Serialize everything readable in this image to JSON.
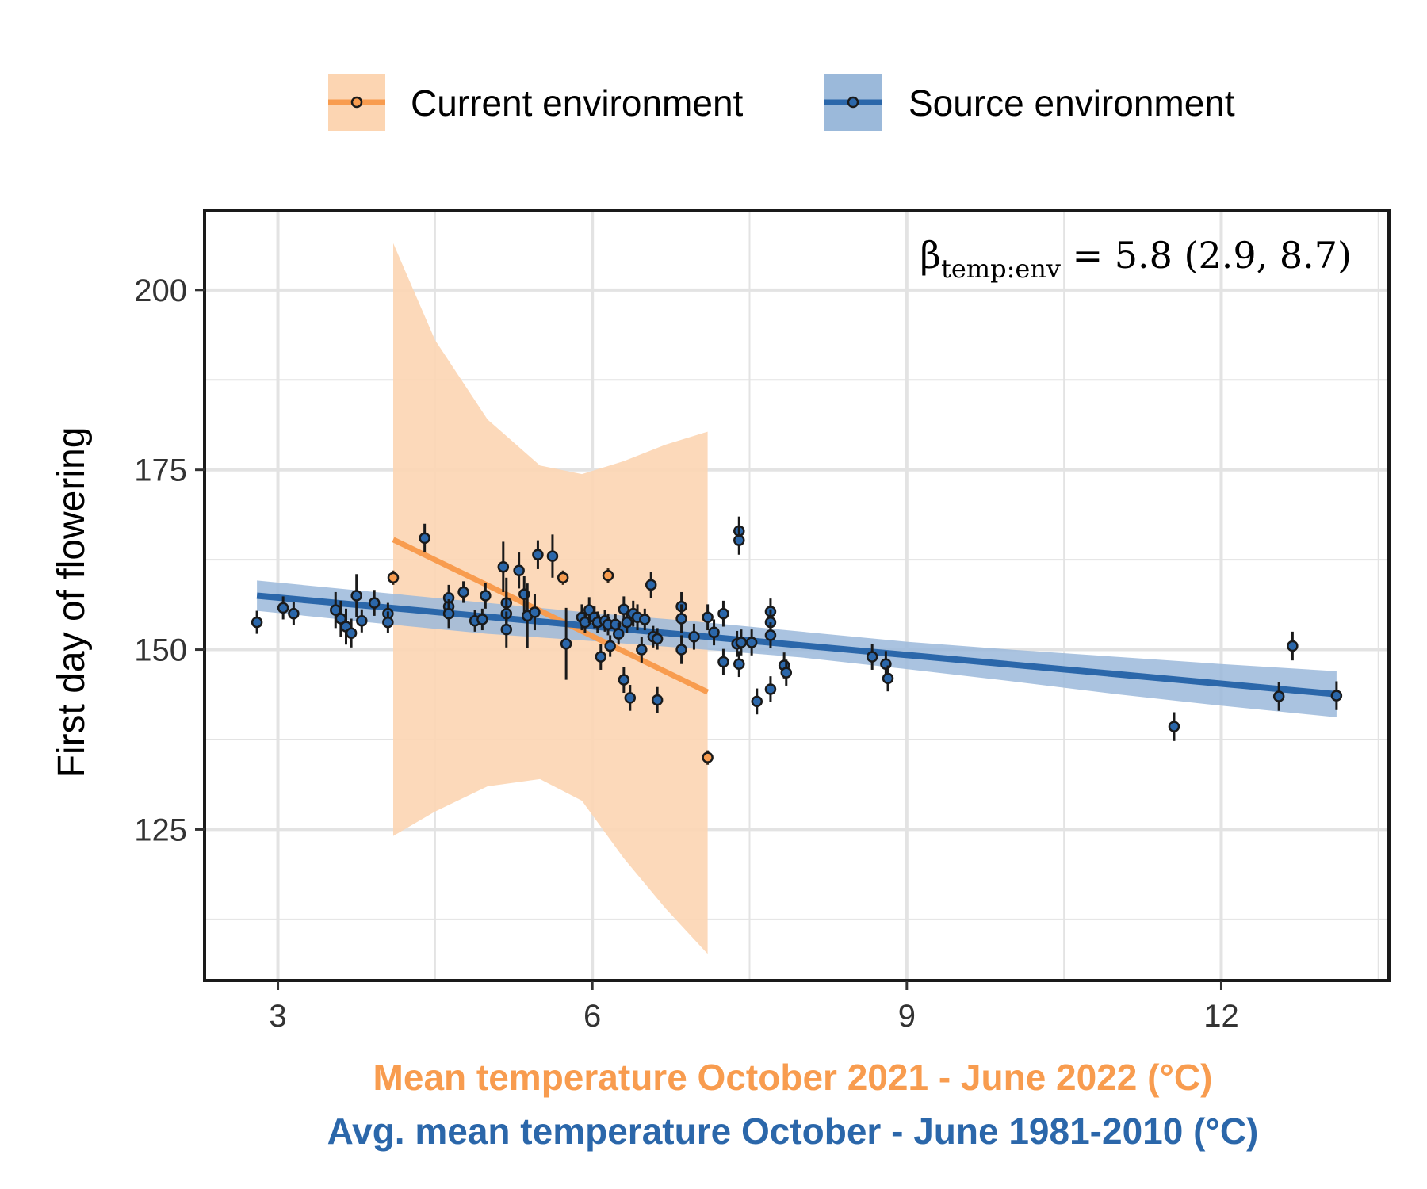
{
  "chart_data": {
    "type": "scatter",
    "title": "",
    "xlabel_current": "Mean temperature October 2021 - June 2022 (°C)",
    "xlabel_source": "Avg. mean temperature October - June 1981-2010 (°C)",
    "ylabel": "First day of flowering",
    "xlim": [
      2.3,
      13.6
    ],
    "ylim": [
      104,
      211
    ],
    "x_ticks": [
      3,
      6,
      9,
      12
    ],
    "y_ticks": [
      125,
      150,
      175,
      200
    ],
    "grid": true,
    "legend_position": "top",
    "annotation": {
      "beta": "β",
      "subscript": "temp:env",
      "text": " = 5.8 (2.9, 8.7)"
    },
    "colors": {
      "current": "#F89C4F",
      "current_band": "#FCD5B2",
      "source": "#2B67AA",
      "source_band": "#9BB9DA"
    },
    "series": [
      {
        "name": "Current environment",
        "fit": {
          "x": [
            4.1,
            7.1
          ],
          "y": [
            165.3,
            144.1
          ]
        },
        "band": {
          "x": [
            4.1,
            4.5,
            5.0,
            5.5,
            5.9,
            6.3,
            6.7,
            7.1
          ],
          "upper": [
            206.5,
            193.0,
            182.0,
            175.6,
            174.4,
            176.2,
            178.5,
            180.3
          ],
          "lower": [
            124.1,
            127.5,
            131.0,
            132.0,
            129.0,
            121.0,
            114.0,
            107.7
          ]
        },
        "points": [
          {
            "x": 4.1,
            "y": 160.0,
            "err": 1.0
          },
          {
            "x": 5.72,
            "y": 160.0,
            "err": 1.0
          },
          {
            "x": 6.15,
            "y": 160.3,
            "err": 1.0
          },
          {
            "x": 7.1,
            "y": 135.0,
            "err": 1.0
          }
        ]
      },
      {
        "name": "Source environment",
        "fit": {
          "x": [
            2.8,
            13.1
          ],
          "y": [
            157.5,
            143.8
          ]
        },
        "band": {
          "x": [
            2.8,
            4.0,
            5.0,
            6.0,
            7.0,
            8.0,
            9.0,
            10.0,
            11.0,
            12.0,
            13.1
          ],
          "upper": [
            159.6,
            157.9,
            156.5,
            155.1,
            153.9,
            152.5,
            151.1,
            150.0,
            149.0,
            148.0,
            147.0
          ],
          "lower": [
            155.4,
            153.6,
            152.2,
            151.2,
            150.1,
            148.9,
            147.3,
            145.6,
            143.8,
            142.2,
            140.6
          ]
        },
        "points": [
          {
            "x": 2.8,
            "y": 153.8,
            "err": 1.6
          },
          {
            "x": 3.05,
            "y": 155.8,
            "err": 1.6
          },
          {
            "x": 3.15,
            "y": 155.0,
            "err": 1.6
          },
          {
            "x": 3.55,
            "y": 155.5,
            "err": 2.5
          },
          {
            "x": 3.6,
            "y": 154.3,
            "err": 2.5
          },
          {
            "x": 3.65,
            "y": 153.2,
            "err": 2.5
          },
          {
            "x": 3.7,
            "y": 152.3,
            "err": 2.0
          },
          {
            "x": 3.75,
            "y": 157.5,
            "err": 3.0
          },
          {
            "x": 3.8,
            "y": 154.0,
            "err": 1.6
          },
          {
            "x": 3.92,
            "y": 156.5,
            "err": 1.8
          },
          {
            "x": 4.05,
            "y": 155.0,
            "err": 1.5
          },
          {
            "x": 4.05,
            "y": 153.8,
            "err": 1.5
          },
          {
            "x": 4.4,
            "y": 165.5,
            "err": 2.0
          },
          {
            "x": 4.63,
            "y": 156.0,
            "err": 2.0
          },
          {
            "x": 4.63,
            "y": 157.2,
            "err": 1.8
          },
          {
            "x": 4.63,
            "y": 155.0,
            "err": 2.0
          },
          {
            "x": 4.77,
            "y": 158.0,
            "err": 1.5
          },
          {
            "x": 4.88,
            "y": 154.0,
            "err": 1.5
          },
          {
            "x": 4.95,
            "y": 154.2,
            "err": 1.5
          },
          {
            "x": 4.98,
            "y": 157.5,
            "err": 1.8
          },
          {
            "x": 5.15,
            "y": 161.5,
            "err": 3.5
          },
          {
            "x": 5.18,
            "y": 156.5,
            "err": 3.5
          },
          {
            "x": 5.18,
            "y": 155.0,
            "err": 3.0
          },
          {
            "x": 5.18,
            "y": 152.8,
            "err": 2.5
          },
          {
            "x": 5.3,
            "y": 161.0,
            "err": 2.5
          },
          {
            "x": 5.35,
            "y": 157.7,
            "err": 2.5
          },
          {
            "x": 5.38,
            "y": 154.7,
            "err": 4.5
          },
          {
            "x": 5.45,
            "y": 155.2,
            "err": 2.5
          },
          {
            "x": 5.48,
            "y": 163.2,
            "err": 2.0
          },
          {
            "x": 5.62,
            "y": 163.0,
            "err": 3.0
          },
          {
            "x": 5.75,
            "y": 150.8,
            "err": 5.0
          },
          {
            "x": 5.9,
            "y": 154.5,
            "err": 1.8
          },
          {
            "x": 5.93,
            "y": 153.8,
            "err": 1.5
          },
          {
            "x": 5.97,
            "y": 155.5,
            "err": 1.8
          },
          {
            "x": 6.02,
            "y": 154.5,
            "err": 1.5
          },
          {
            "x": 6.05,
            "y": 153.8,
            "err": 1.5
          },
          {
            "x": 6.08,
            "y": 149.0,
            "err": 1.8
          },
          {
            "x": 6.12,
            "y": 154.0,
            "err": 1.5
          },
          {
            "x": 6.15,
            "y": 153.5,
            "err": 1.5
          },
          {
            "x": 6.17,
            "y": 150.5,
            "err": 1.5
          },
          {
            "x": 6.22,
            "y": 153.5,
            "err": 1.5
          },
          {
            "x": 6.25,
            "y": 152.2,
            "err": 1.5
          },
          {
            "x": 6.3,
            "y": 155.6,
            "err": 1.8
          },
          {
            "x": 6.3,
            "y": 145.8,
            "err": 1.8
          },
          {
            "x": 6.33,
            "y": 153.8,
            "err": 1.5
          },
          {
            "x": 6.36,
            "y": 143.3,
            "err": 1.8
          },
          {
            "x": 6.39,
            "y": 155.0,
            "err": 1.8
          },
          {
            "x": 6.43,
            "y": 154.5,
            "err": 1.8
          },
          {
            "x": 6.47,
            "y": 150.0,
            "err": 1.8
          },
          {
            "x": 6.5,
            "y": 154.2,
            "err": 1.5
          },
          {
            "x": 6.56,
            "y": 159.0,
            "err": 1.8
          },
          {
            "x": 6.58,
            "y": 151.8,
            "err": 1.5
          },
          {
            "x": 6.62,
            "y": 151.5,
            "err": 1.5
          },
          {
            "x": 6.62,
            "y": 143.0,
            "err": 1.8
          },
          {
            "x": 6.85,
            "y": 156.0,
            "err": 2.0
          },
          {
            "x": 6.85,
            "y": 154.3,
            "err": 2.0
          },
          {
            "x": 6.85,
            "y": 150.0,
            "err": 2.0
          },
          {
            "x": 6.97,
            "y": 151.8,
            "err": 1.8
          },
          {
            "x": 7.1,
            "y": 154.5,
            "err": 1.8
          },
          {
            "x": 7.16,
            "y": 152.4,
            "err": 1.8
          },
          {
            "x": 7.25,
            "y": 155.0,
            "err": 1.8
          },
          {
            "x": 7.25,
            "y": 148.3,
            "err": 1.8
          },
          {
            "x": 7.38,
            "y": 150.8,
            "err": 1.8
          },
          {
            "x": 7.4,
            "y": 166.5,
            "err": 2.0
          },
          {
            "x": 7.4,
            "y": 165.2,
            "err": 2.0
          },
          {
            "x": 7.4,
            "y": 148.0,
            "err": 1.8
          },
          {
            "x": 7.42,
            "y": 151.0,
            "err": 1.8
          },
          {
            "x": 7.52,
            "y": 151.0,
            "err": 1.8
          },
          {
            "x": 7.57,
            "y": 142.8,
            "err": 1.8
          },
          {
            "x": 7.7,
            "y": 155.3,
            "err": 1.8
          },
          {
            "x": 7.7,
            "y": 153.8,
            "err": 1.8
          },
          {
            "x": 7.7,
            "y": 152.0,
            "err": 1.8
          },
          {
            "x": 7.7,
            "y": 144.5,
            "err": 1.8
          },
          {
            "x": 7.83,
            "y": 147.8,
            "err": 1.8
          },
          {
            "x": 7.85,
            "y": 146.8,
            "err": 1.8
          },
          {
            "x": 8.67,
            "y": 149.0,
            "err": 1.8
          },
          {
            "x": 8.8,
            "y": 148.0,
            "err": 1.8
          },
          {
            "x": 8.82,
            "y": 146.0,
            "err": 1.8
          },
          {
            "x": 11.55,
            "y": 139.3,
            "err": 2.0
          },
          {
            "x": 12.55,
            "y": 143.5,
            "err": 2.0
          },
          {
            "x": 12.68,
            "y": 150.5,
            "err": 2.0
          },
          {
            "x": 13.1,
            "y": 143.6,
            "err": 2.0
          }
        ]
      }
    ]
  }
}
